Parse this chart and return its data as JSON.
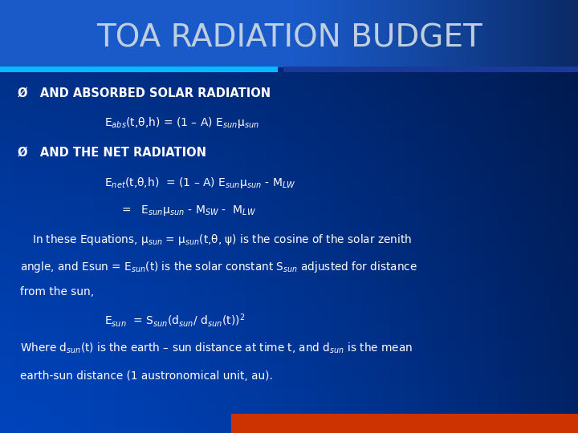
{
  "title": "TOA RADIATION BUDGET",
  "title_color": "#c0cfe0",
  "title_fontsize": 28,
  "text_color": "white",
  "bg_main": "#0044bb",
  "bg_title": "#1155cc",
  "thin_bar_left_color": "#00aaff",
  "thin_bar_right_color": "#1a44aa",
  "bottom_bar_color": "#cc3300",
  "bullet1": "Ø   AND ABSORBED SOLAR RADIATION",
  "eq1": "E$_{abs}$(t,θ,h) = (1 – A) E$_{sun}$μ$_{sun}$",
  "bullet2": "Ø   AND THE NET RADIATION",
  "eq2": "E$_{net}$(t,θ,h)  = (1 – A) E$_{sun}$μ$_{sun}$ - M$_{LW}$",
  "eq3": "=   E$_{sun}$μ$_{sun}$ - M$_{SW}$ -  M$_{LW}$",
  "para1": "In these Equations, μ$_{sun}$ = μ$_{sun}$(t,θ, ψ) is the cosine of the solar zenith",
  "para2": "angle, and Esun = E$_{sun}$(t) is the solar constant S$_{sun}$ adjusted for distance",
  "para3": "from the sun,",
  "eq4": "E$_{sun}$  = S$_{sun}$(d$_{sun}$/ d$_{sun}$(t))$^{2}$",
  "para4": "Where d$_{sun}$(t) is the earth – sun distance at time t, and d$_{sun}$ is the mean",
  "para5": "earth-sun distance (1 austronomical unit, au)."
}
